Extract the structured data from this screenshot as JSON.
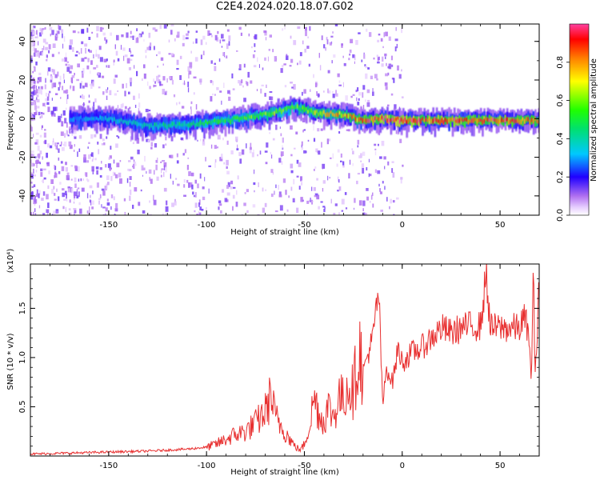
{
  "title": "C2E4.2024.020.18.07.G02",
  "colorbar": {
    "label": "Normalized spectral amplitude",
    "ticks": [
      "0.0",
      "0.2",
      "0.4",
      "0.6",
      "0.8"
    ],
    "range": [
      0,
      1
    ]
  },
  "chart_data": [
    {
      "type": "heatmap",
      "title": "",
      "xlabel": "Height of straight line (km)",
      "ylabel": "Frequency (Hz)",
      "xlim": [
        -190,
        70
      ],
      "ylim": [
        -50,
        49
      ],
      "xticks": [
        -150,
        -100,
        -50,
        0,
        50
      ],
      "yticks": [
        -40,
        -20,
        0,
        20,
        40
      ],
      "ridge": {
        "description_points_x": [
          -170,
          -150,
          -130,
          -110,
          -90,
          -70,
          -55,
          -45,
          -30,
          -20,
          -10,
          0,
          20,
          40,
          68
        ],
        "frequency_hz": [
          0,
          0,
          -4,
          -3,
          -1,
          2,
          6,
          3,
          2,
          -1,
          0,
          -1,
          -1,
          -1,
          -1
        ],
        "peak_amplitude": [
          0.3,
          0.35,
          0.4,
          0.45,
          0.5,
          0.6,
          0.55,
          0.65,
          0.75,
          0.85,
          0.95,
          0.95,
          0.9,
          0.9,
          0.85
        ]
      }
    },
    {
      "type": "line",
      "title": "",
      "xlabel": "Height of straight line (km)",
      "ylabel": "SNR (10 * v/v)",
      "scale_label": "(x10⁴)",
      "xlim": [
        -190,
        70
      ],
      "ylim": [
        0,
        1.95
      ],
      "xticks": [
        -150,
        -100,
        -50,
        0,
        50
      ],
      "yticks": [
        0.5,
        1.0,
        1.5
      ],
      "series": [
        {
          "color": "#e83030",
          "x": [
            -190,
            -170,
            -150,
            -130,
            -110,
            -100,
            -95,
            -90,
            -85,
            -80,
            -75,
            -70,
            -67,
            -65,
            -60,
            -55,
            -52,
            -50,
            -47,
            -45,
            -42,
            -40,
            -38,
            -35,
            -32,
            -30,
            -28,
            -25,
            -22,
            -20,
            -18,
            -15,
            -12,
            -10,
            -8,
            -5,
            -2,
            0,
            5,
            10,
            15,
            20,
            25,
            30,
            35,
            40,
            43,
            45,
            50,
            55,
            60,
            62,
            64,
            66,
            67,
            68,
            70
          ],
          "y": [
            0.02,
            0.03,
            0.04,
            0.05,
            0.07,
            0.09,
            0.12,
            0.17,
            0.22,
            0.25,
            0.33,
            0.45,
            0.62,
            0.4,
            0.25,
            0.1,
            0.06,
            0.12,
            0.35,
            0.6,
            0.4,
            0.35,
            0.5,
            0.4,
            0.62,
            0.55,
            0.75,
            0.65,
            1.1,
            0.85,
            1.0,
            1.2,
            1.7,
            0.5,
            0.9,
            0.75,
            1.1,
            0.95,
            1.05,
            1.1,
            1.2,
            1.3,
            1.25,
            1.3,
            1.32,
            1.32,
            1.85,
            1.3,
            1.3,
            1.3,
            1.3,
            1.4,
            1.32,
            0.8,
            1.88,
            0.72,
            1.95
          ]
        }
      ]
    }
  ]
}
